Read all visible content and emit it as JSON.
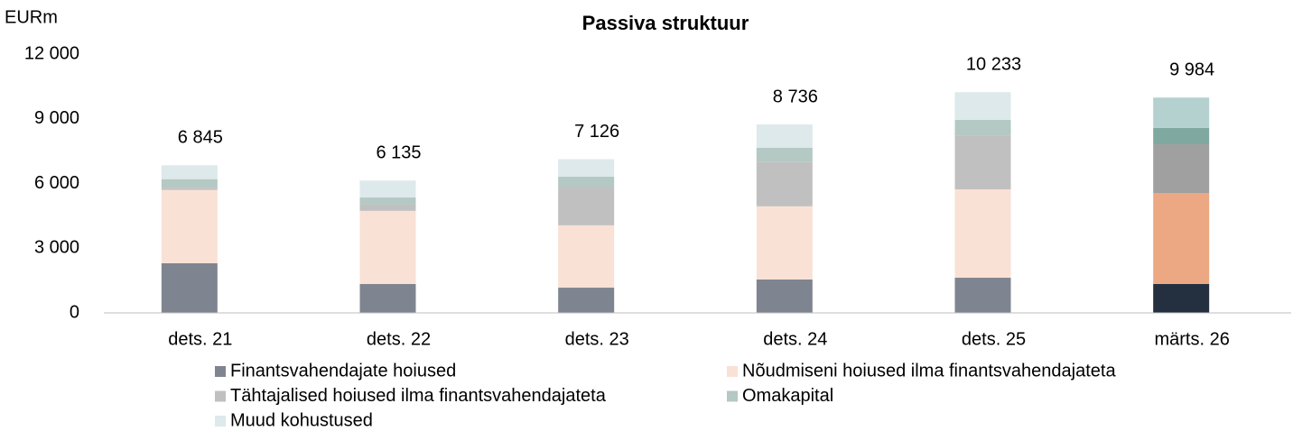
{
  "chart_data": {
    "type": "stacked_bar",
    "title": "Passiva struktuur",
    "y_axis_label": "EURm",
    "categories": [
      "dets. 21",
      "dets. 22",
      "dets. 23",
      "dets. 24",
      "dets. 25",
      "märts. 26"
    ],
    "series": [
      {
        "name": "Finantsvahendajate hoiused",
        "color": "#7f8590",
        "colors": [
          "#7f8590",
          "#7f8590",
          "#7f8590",
          "#7f8590",
          "#7f8590",
          "#243040"
        ],
        "values": [
          2300,
          1340,
          1170,
          1550,
          1630,
          1340
        ]
      },
      {
        "name": "Nõudmiseni hoiused ilma finantsvahendajateta",
        "color": "#fae1d5",
        "colors": [
          "#fae1d5",
          "#fae1d5",
          "#fae1d5",
          "#fae1d5",
          "#fae1d5",
          "#eba882"
        ],
        "values": [
          3400,
          3390,
          2890,
          3390,
          4100,
          4220
        ]
      },
      {
        "name": "Tähtajalised hoiused ilma finantsvahendajateta",
        "color": "#c0c0c0",
        "colors": [
          "#c0c0c0",
          "#c0c0c0",
          "#c0c0c0",
          "#c0c0c0",
          "#c0c0c0",
          "#a0a0a0"
        ],
        "values": [
          100,
          290,
          1750,
          2050,
          2470,
          2260
        ]
      },
      {
        "name": "Omakapital",
        "color": "#b4c8c4",
        "colors": [
          "#b4c8c4",
          "#b4c8c4",
          "#b4c8c4",
          "#b4c8c4",
          "#b4c8c4",
          "#7fa8a0"
        ],
        "values": [
          400,
          330,
          510,
          670,
          750,
          760
        ]
      },
      {
        "name": "Muud kohustused",
        "color": "#dde9ea",
        "colors": [
          "#dde9ea",
          "#dde9ea",
          "#dde9ea",
          "#dde9ea",
          "#dde9ea",
          "#b4d0cf"
        ],
        "values": [
          645,
          785,
          806,
          1076,
          1283,
          1404
        ]
      }
    ],
    "totals": [
      6845,
      6135,
      7126,
      8736,
      10233,
      9984
    ],
    "total_labels": [
      "6 845",
      "6 135",
      "7 126",
      "8 736",
      "10 233",
      "9 984"
    ],
    "ylim": [
      0,
      12000
    ],
    "yticks": [
      0,
      {
        "value": 3000,
        "label": "3 000"
      },
      {
        "value": 6000,
        "label": "6 000"
      },
      {
        "value": 9000,
        "label": "9 000"
      },
      {
        "value": 12000,
        "label": "12 000"
      }
    ],
    "grid": false,
    "legend": "bottom"
  }
}
